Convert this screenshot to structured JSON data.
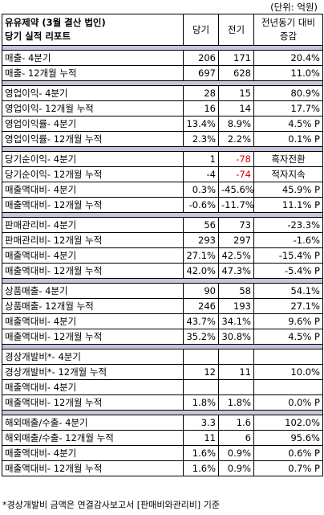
{
  "unit_note": "(단위: 억원)",
  "header": {
    "title_line1": "유유제약 (3월 결산 법인)",
    "title_line2": "당기 실적 리포트",
    "col_current": "당기",
    "col_previous": "전기",
    "col_yoy": "전년동기 대비 증감"
  },
  "groups": [
    {
      "rows": [
        {
          "label": "매출- 4분기",
          "cur": "206",
          "prev": "171",
          "yoy": "20.4%"
        },
        {
          "label": "매출- 12개월 누적",
          "cur": "697",
          "prev": "628",
          "yoy": "11.0%"
        }
      ]
    },
    {
      "rows": [
        {
          "label": "영업이익- 4분기",
          "cur": "28",
          "prev": "15",
          "yoy": "80.9%"
        },
        {
          "label": "영업이익- 12개월 누적",
          "cur": "16",
          "prev": "14",
          "yoy": "17.7%"
        },
        {
          "label": "영업이익률- 4분기",
          "cur": "13.4%",
          "prev": "8.9%",
          "yoy": "4.5% P"
        },
        {
          "label": "영업이익률- 12개월 누적",
          "cur": "2.3%",
          "prev": "2.2%",
          "yoy": "0.1% P"
        }
      ]
    },
    {
      "rows": [
        {
          "label": "당기순이익- 4분기",
          "cur": "1",
          "prev": "-78",
          "yoy": "흑자전환",
          "prev_red": true,
          "yoy_center": true
        },
        {
          "label": "당기순이익- 12개월 누적",
          "cur": "-4",
          "prev": "-74",
          "yoy": "적자지속",
          "prev_red": true,
          "yoy_center": true
        },
        {
          "label": "매출액대비- 4분기",
          "cur": "0.3%",
          "prev": "-45.6%",
          "yoy": "45.9% P"
        },
        {
          "label": "매출액대비- 12개월 누적",
          "cur": "-0.6%",
          "prev": "-11.7%",
          "yoy": "11.1% P"
        }
      ]
    },
    {
      "rows": [
        {
          "label": "판매관리비- 4분기",
          "cur": "56",
          "prev": "73",
          "yoy": "-23.3%"
        },
        {
          "label": "판매관리비- 12개월 누적",
          "cur": "293",
          "prev": "297",
          "yoy": "-1.6%"
        },
        {
          "label": "매출액대비- 4분기",
          "cur": "27.1%",
          "prev": "42.5%",
          "yoy": "-15.4% P"
        },
        {
          "label": "매출액대비- 12개월 누적",
          "cur": "42.0%",
          "prev": "47.3%",
          "yoy": "-5.4% P"
        }
      ]
    },
    {
      "rows": [
        {
          "label": "상품매출- 4분기",
          "cur": "90",
          "prev": "58",
          "yoy": "54.1%"
        },
        {
          "label": "상품매출- 12개월 누적",
          "cur": "246",
          "prev": "193",
          "yoy": "27.1%"
        },
        {
          "label": "매출액대비- 4분기",
          "cur": "43.7%",
          "prev": "34.1%",
          "yoy": "9.6% P"
        },
        {
          "label": "매출액대비- 12개월 누적",
          "cur": "35.2%",
          "prev": "30.8%",
          "yoy": "4.5% P"
        }
      ]
    },
    {
      "rows": [
        {
          "label": "경상개발비*- 4분기",
          "cur": "",
          "prev": "",
          "yoy": ""
        },
        {
          "label": "경상개발비*- 12개월 누적",
          "cur": "12",
          "prev": "11",
          "yoy": "10.0%"
        },
        {
          "label": "매출액대비- 4분기",
          "cur": "",
          "prev": "",
          "yoy": ""
        },
        {
          "label": "매출액대비- 12개월 누적",
          "cur": "1.8%",
          "prev": "1.8%",
          "yoy": "0.0% P"
        }
      ]
    },
    {
      "rows": [
        {
          "label": "해외매출/수출- 4분기",
          "cur": "3.3",
          "prev": "1.6",
          "yoy": "102.0%"
        },
        {
          "label": "해외매출/수출- 12개월 누적",
          "cur": "11",
          "prev": "6",
          "yoy": "95.6%"
        },
        {
          "label": "매출액대비- 4분기",
          "cur": "1.6%",
          "prev": "0.9%",
          "yoy": "0.6% P"
        },
        {
          "label": "매출액대비- 12개월 누적",
          "cur": "1.6%",
          "prev": "0.9%",
          "yoy": "0.7% P"
        }
      ]
    }
  ],
  "footnote": "*경상개발비 금액은 연결감사보고서 [판매비와관리비] 기준",
  "colors": {
    "separator": "#c9c3dc",
    "negative": "#e00000"
  }
}
